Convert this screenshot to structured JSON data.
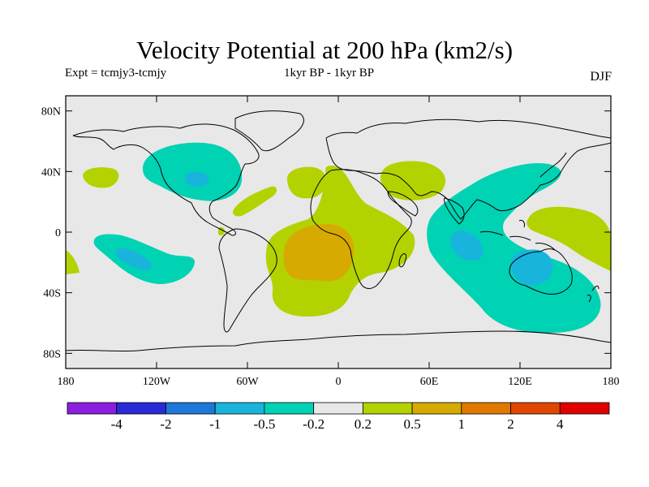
{
  "title": "Velocity Potential at 200 hPa (km2/s)",
  "subtitle_left": "Expt = tcmjy3-tcmjy",
  "subtitle_mid": "1kyr BP - 1kyr BP",
  "subtitle_right": "DJF",
  "map": {
    "projection": "equirectangular",
    "lon_range": [
      -180,
      180
    ],
    "lat_range": [
      -90,
      90
    ],
    "background": "#e8e8e8",
    "lat_ticks": [
      {
        "lat": 80,
        "label": "80N"
      },
      {
        "lat": 40,
        "label": "40N"
      },
      {
        "lat": 0,
        "label": "0"
      },
      {
        "lat": -40,
        "label": "40S"
      },
      {
        "lat": -80,
        "label": "80S"
      }
    ],
    "lon_ticks": [
      {
        "lon": -180,
        "label": "180"
      },
      {
        "lon": -120,
        "label": "120W"
      },
      {
        "lon": -60,
        "label": "60W"
      },
      {
        "lon": 0,
        "label": "0"
      },
      {
        "lon": 60,
        "label": "60E"
      },
      {
        "lon": 120,
        "label": "120E"
      },
      {
        "lon": 180,
        "label": "180"
      }
    ]
  },
  "colorbar": {
    "colors": [
      "#8b1fe0",
      "#2a2ad6",
      "#1e78d8",
      "#19b4dc",
      "#00d2b4",
      "#e8e8e8",
      "#b4d200",
      "#d6aa00",
      "#e07800",
      "#e04600",
      "#e00000"
    ],
    "labels": [
      "-4",
      "-2",
      "-1",
      "-0.5",
      "-0.2",
      "0.2",
      "0.5",
      "1",
      "2",
      "4"
    ]
  }
}
